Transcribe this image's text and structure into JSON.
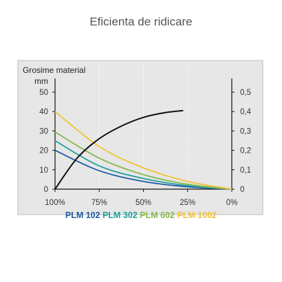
{
  "title": "Eficienta de ridicare",
  "chart_data": {
    "type": "line",
    "ylabel": "Grosime material",
    "yunit": "mm",
    "y_ticks": [
      "0",
      "10",
      "20",
      "30",
      "40",
      "50"
    ],
    "y2_ticks": [
      "0",
      "0,1",
      "0,2",
      "0,3",
      "0,4",
      "0,5"
    ],
    "x_ticks": [
      "100%",
      "75%",
      "50%",
      "25%",
      "0%"
    ],
    "x": [
      100,
      75,
      50,
      25,
      0
    ],
    "ylim": [
      0,
      50
    ],
    "y2lim": [
      0,
      0.5
    ],
    "xlim": [
      100,
      0
    ],
    "grid": true,
    "series": [
      {
        "name": "PLM 102",
        "color": "#1f5aa6",
        "values": [
          20,
          9.5,
          4,
          1.2,
          0
        ]
      },
      {
        "name": "PLM 302",
        "color": "#1f9e9a",
        "values": [
          25,
          12,
          5.5,
          1.8,
          0
        ]
      },
      {
        "name": "PLM 602",
        "color": "#86b84e",
        "values": [
          29.5,
          16,
          7.5,
          2.5,
          0
        ]
      },
      {
        "name": "PLM 1002",
        "color": "#f2c232",
        "values": [
          40,
          22,
          11,
          4,
          0
        ]
      }
    ],
    "secondary_series": {
      "color": "#111111",
      "axis": "right",
      "x": [
        100,
        87.5,
        75,
        62.5,
        50,
        37.5,
        27.5
      ],
      "values": [
        0,
        0.16,
        0.26,
        0.325,
        0.37,
        0.395,
        0.405
      ]
    }
  }
}
